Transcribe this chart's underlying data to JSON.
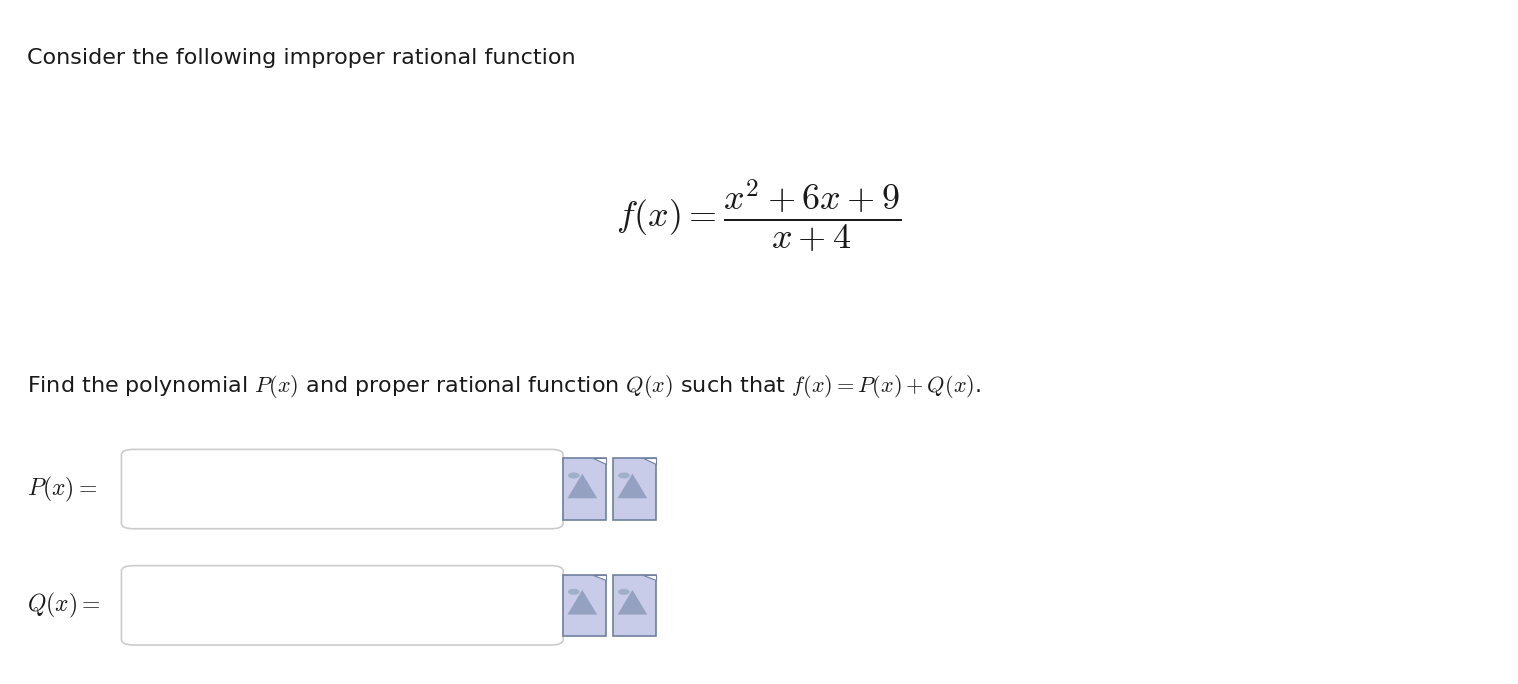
{
  "background_color": "#ffffff",
  "title_text": "Consider the following improper rational function",
  "title_fontsize": 16,
  "title_color": "#1a1a1a",
  "formula_fontsize": 22,
  "find_text": "Find the polynomial $P(x)$ and proper rational function $Q(x)$ such that $f(x) = P(x) + Q(x)$.",
  "find_fontsize": 16,
  "find_color": "#1a1a1a",
  "label_fontsize": 17,
  "label_color": "#1a1a1a",
  "box_edgecolor": "#cccccc",
  "box_facecolor": "#ffffff",
  "icon_bg_color": "#c8cce8",
  "icon_edge_color": "#7080a0"
}
